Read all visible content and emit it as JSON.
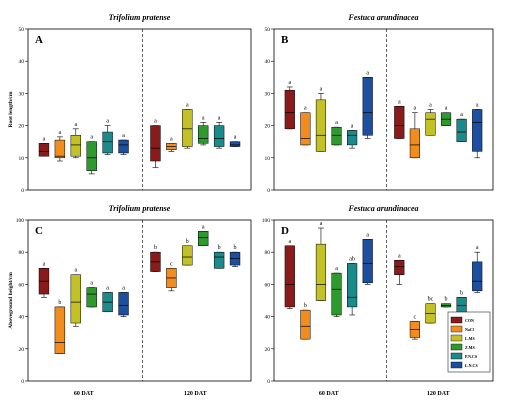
{
  "colors": [
    "#8b1a1a",
    "#f28c1c",
    "#c2c227",
    "#2e9a2e",
    "#1a8a8a",
    "#1c4fa0"
  ],
  "legend": [
    "CON",
    "NaCl",
    "L.MS",
    "Z.MS",
    "P.N.CS",
    "L.N.CS"
  ],
  "xgroups": [
    "60 DAT",
    "120 DAT"
  ],
  "chart_data": [
    {
      "id": "A",
      "type": "box",
      "title": "Trifolium pratense",
      "ylabel": "Root length/cm",
      "ylim": [
        0,
        50
      ],
      "yticks": [
        0,
        10,
        20,
        30,
        40,
        50
      ],
      "groups": [
        {
          "name": "60 DAT",
          "boxes": [
            {
              "min": 10.5,
              "q1": 10.5,
              "med": 12,
              "q3": 14.5,
              "max": 14.5,
              "letter": "a"
            },
            {
              "min": 9,
              "q1": 10,
              "med": 10.5,
              "q3": 15.5,
              "max": 16.5,
              "letter": "a"
            },
            {
              "min": 10,
              "q1": 10.5,
              "med": 14,
              "q3": 17,
              "max": 19,
              "letter": "a"
            },
            {
              "min": 5,
              "q1": 6,
              "med": 10,
              "q3": 15,
              "max": 15,
              "letter": "a"
            },
            {
              "min": 11,
              "q1": 11.5,
              "med": 15,
              "q3": 18,
              "max": 20,
              "letter": "a"
            },
            {
              "min": 11,
              "q1": 11.5,
              "med": 14,
              "q3": 15.5,
              "max": 15.5,
              "letter": "a"
            }
          ]
        },
        {
          "name": "120 DAT",
          "boxes": [
            {
              "min": 7,
              "q1": 9,
              "med": 13,
              "q3": 20,
              "max": 20,
              "letter": "a"
            },
            {
              "min": 12,
              "q1": 12.5,
              "med": 13.5,
              "q3": 14.5,
              "max": 14.5,
              "letter": "a"
            },
            {
              "min": 13,
              "q1": 13.5,
              "med": 19,
              "q3": 25,
              "max": 25,
              "letter": "a"
            },
            {
              "min": 14,
              "q1": 14.5,
              "med": 16,
              "q3": 20,
              "max": 21,
              "letter": "a"
            },
            {
              "min": 13,
              "q1": 13.5,
              "med": 16,
              "q3": 20,
              "max": 21,
              "letter": "a"
            },
            {
              "min": 13.5,
              "q1": 13.5,
              "med": 14,
              "q3": 15,
              "max": 15,
              "letter": "a"
            }
          ]
        }
      ]
    },
    {
      "id": "B",
      "type": "box",
      "title": "Festuca arundinacea",
      "ylabel": "",
      "ylim": [
        0,
        50
      ],
      "yticks": [
        0,
        10,
        20,
        30,
        40,
        50
      ],
      "groups": [
        {
          "name": "60 DAT",
          "boxes": [
            {
              "min": 19,
              "q1": 19,
              "med": 24,
              "q3": 31,
              "max": 32,
              "letter": "a"
            },
            {
              "min": 14,
              "q1": 14,
              "med": 16,
              "q3": 24,
              "max": 24,
              "letter": "a"
            },
            {
              "min": 12,
              "q1": 12,
              "med": 17,
              "q3": 28,
              "max": 30,
              "letter": "a"
            },
            {
              "min": 14,
              "q1": 14,
              "med": 17,
              "q3": 19.5,
              "max": 19.5,
              "letter": "a"
            },
            {
              "min": 13,
              "q1": 14,
              "med": 17,
              "q3": 18.5,
              "max": 18.5,
              "letter": "a"
            },
            {
              "min": 16,
              "q1": 17,
              "med": 24,
              "q3": 35,
              "max": 35,
              "letter": "a"
            }
          ]
        },
        {
          "name": "120 DAT",
          "boxes": [
            {
              "min": 16,
              "q1": 16,
              "med": 20,
              "q3": 26,
              "max": 26,
              "letter": "a"
            },
            {
              "min": 10,
              "q1": 10,
              "med": 14,
              "q3": 19,
              "max": 24,
              "letter": "a"
            },
            {
              "min": 17,
              "q1": 17,
              "med": 22,
              "q3": 24,
              "max": 25,
              "letter": "a"
            },
            {
              "min": 20,
              "q1": 20,
              "med": 22,
              "q3": 24,
              "max": 24,
              "letter": "a"
            },
            {
              "min": 15,
              "q1": 15,
              "med": 18,
              "q3": 22,
              "max": 22,
              "letter": "a"
            },
            {
              "min": 10,
              "q1": 12,
              "med": 21,
              "q3": 25,
              "max": 25,
              "letter": "a"
            }
          ]
        }
      ]
    },
    {
      "id": "C",
      "type": "box",
      "title": "Trifolium pratense",
      "ylabel": "Aboveground height/cm",
      "ylim": [
        0,
        100
      ],
      "yticks": [
        0,
        20,
        40,
        60,
        80,
        100
      ],
      "groups": [
        {
          "name": "60 DAT",
          "boxes": [
            {
              "min": 52,
              "q1": 54,
              "med": 62,
              "q3": 70,
              "max": 70,
              "letter": "a"
            },
            {
              "min": 17,
              "q1": 17,
              "med": 24,
              "q3": 46,
              "max": 46,
              "letter": "b"
            },
            {
              "min": 34,
              "q1": 36,
              "med": 49,
              "q3": 66,
              "max": 66,
              "letter": "a"
            },
            {
              "min": 46,
              "q1": 46,
              "med": 54,
              "q3": 58,
              "max": 58,
              "letter": "a"
            },
            {
              "min": 43,
              "q1": 43,
              "med": 49,
              "q3": 55,
              "max": 55,
              "letter": "a"
            },
            {
              "min": 40,
              "q1": 41,
              "med": 47,
              "q3": 55,
              "max": 55,
              "letter": "a"
            }
          ]
        },
        {
          "name": "120 DAT",
          "boxes": [
            {
              "min": 68,
              "q1": 68,
              "med": 74,
              "q3": 80,
              "max": 80,
              "letter": "b"
            },
            {
              "min": 56,
              "q1": 58,
              "med": 64,
              "q3": 70,
              "max": 70,
              "letter": "c"
            },
            {
              "min": 72,
              "q1": 72,
              "med": 77,
              "q3": 84,
              "max": 84,
              "letter": "b"
            },
            {
              "min": 84,
              "q1": 84,
              "med": 89,
              "q3": 93,
              "max": 93,
              "letter": "a"
            },
            {
              "min": 70,
              "q1": 70,
              "med": 77,
              "q3": 80,
              "max": 80,
              "letter": "b"
            },
            {
              "min": 71,
              "q1": 72,
              "med": 76,
              "q3": 80,
              "max": 80,
              "letter": "b"
            }
          ]
        }
      ]
    },
    {
      "id": "D",
      "type": "box",
      "title": "Festuca arundinacea",
      "ylabel": "",
      "ylim": [
        0,
        100
      ],
      "yticks": [
        0,
        20,
        40,
        60,
        80,
        100
      ],
      "groups": [
        {
          "name": "60 DAT",
          "boxes": [
            {
              "min": 45,
              "q1": 46,
              "med": 60,
              "q3": 84,
              "max": 84,
              "letter": "a"
            },
            {
              "min": 26,
              "q1": 26,
              "med": 34,
              "q3": 44,
              "max": 44,
              "letter": "b"
            },
            {
              "min": 50,
              "q1": 50,
              "med": 60,
              "q3": 85,
              "max": 95,
              "letter": "a"
            },
            {
              "min": 40,
              "q1": 41,
              "med": 57,
              "q3": 67,
              "max": 67,
              "letter": "a"
            },
            {
              "min": 41,
              "q1": 46,
              "med": 52,
              "q3": 73,
              "max": 73,
              "letter": "ab"
            },
            {
              "min": 60,
              "q1": 61,
              "med": 73,
              "q3": 88,
              "max": 88,
              "letter": "a"
            }
          ]
        },
        {
          "name": "120 DAT",
          "boxes": [
            {
              "min": 60,
              "q1": 66,
              "med": 71,
              "q3": 75,
              "max": 75,
              "letter": "a"
            },
            {
              "min": 26,
              "q1": 27,
              "med": 32,
              "q3": 37,
              "max": 37,
              "letter": "c"
            },
            {
              "min": 36,
              "q1": 36,
              "med": 42,
              "q3": 48,
              "max": 48,
              "letter": "bc"
            },
            {
              "min": 46,
              "q1": 46,
              "med": 47,
              "q3": 48,
              "max": 48,
              "letter": "b"
            },
            {
              "min": 40,
              "q1": 41,
              "med": 47,
              "q3": 52,
              "max": 52,
              "letter": "b"
            },
            {
              "min": 55,
              "q1": 56,
              "med": 62,
              "q3": 74,
              "max": 80,
              "letter": "a"
            }
          ]
        }
      ]
    }
  ]
}
